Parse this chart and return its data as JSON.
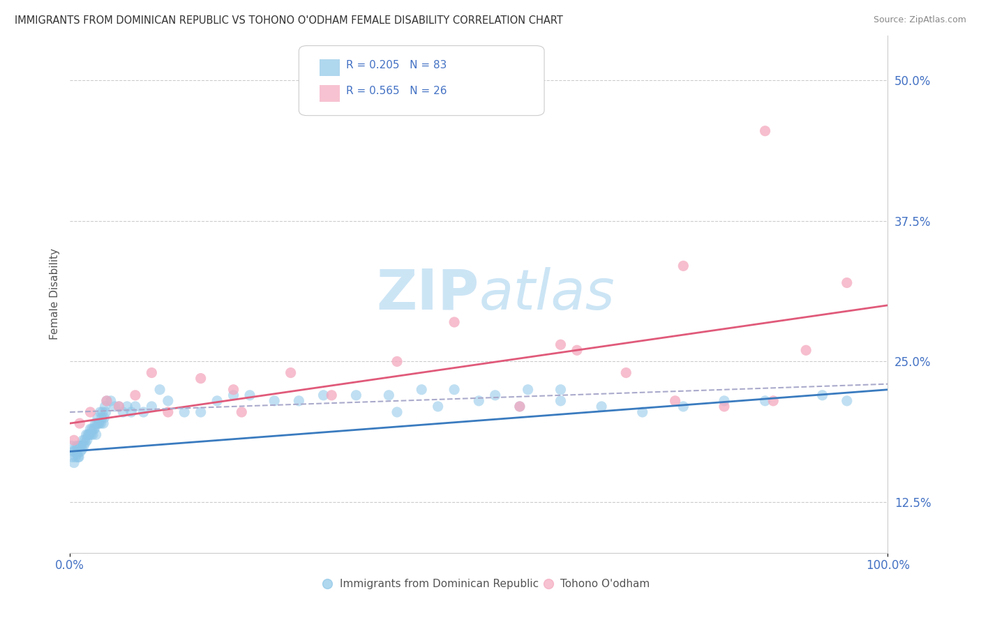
{
  "title": "IMMIGRANTS FROM DOMINICAN REPUBLIC VS TOHONO O'ODHAM FEMALE DISABILITY CORRELATION CHART",
  "source": "Source: ZipAtlas.com",
  "ylabel": "Female Disability",
  "legend_r1": "R = 0.205",
  "legend_n1": "N = 83",
  "legend_r2": "R = 0.565",
  "legend_n2": "N = 26",
  "blue_color": "#8dc6e8",
  "pink_color": "#f4a8be",
  "blue_line_color": "#3a7bbf",
  "pink_line_color": "#e05a7a",
  "dashed_line_color": "#aaaacc",
  "watermark_color": "#cce5f5",
  "blue_scatter_x": [
    0.2,
    0.3,
    0.4,
    0.5,
    0.6,
    0.7,
    0.8,
    0.9,
    1.0,
    1.0,
    1.1,
    1.2,
    1.3,
    1.4,
    1.5,
    1.6,
    1.7,
    1.8,
    1.9,
    2.0,
    2.1,
    2.2,
    2.3,
    2.4,
    2.5,
    2.6,
    2.7,
    2.8,
    2.9,
    3.0,
    3.1,
    3.2,
    3.3,
    3.4,
    3.5,
    3.6,
    3.7,
    3.8,
    3.9,
    4.0,
    4.1,
    4.2,
    4.3,
    4.4,
    4.5,
    5.0,
    5.5,
    6.0,
    6.5,
    7.0,
    7.5,
    8.0,
    9.0,
    10.0,
    11.0,
    12.0,
    14.0,
    16.0,
    18.0,
    20.0,
    22.0,
    25.0,
    28.0,
    31.0,
    35.0,
    39.0,
    43.0,
    47.0,
    52.0,
    56.0,
    60.0,
    40.0,
    45.0,
    50.0,
    55.0,
    60.0,
    65.0,
    70.0,
    75.0,
    80.0,
    85.0,
    92.0,
    95.0
  ],
  "blue_scatter_y": [
    17.5,
    16.5,
    17.0,
    16.0,
    17.0,
    16.5,
    17.5,
    16.8,
    16.5,
    17.5,
    16.5,
    17.5,
    17.0,
    17.5,
    17.2,
    18.0,
    17.5,
    18.0,
    17.8,
    18.5,
    18.0,
    18.5,
    18.5,
    18.5,
    19.0,
    18.5,
    19.0,
    18.5,
    19.0,
    19.0,
    19.5,
    18.5,
    19.5,
    20.0,
    19.5,
    19.5,
    20.5,
    19.5,
    20.0,
    20.5,
    19.5,
    20.0,
    21.0,
    20.5,
    21.5,
    21.5,
    21.0,
    21.0,
    20.5,
    21.0,
    20.5,
    21.0,
    20.5,
    21.0,
    22.5,
    21.5,
    20.5,
    20.5,
    21.5,
    22.0,
    22.0,
    21.5,
    21.5,
    22.0,
    22.0,
    22.0,
    22.5,
    22.5,
    22.0,
    22.5,
    22.5,
    20.5,
    21.0,
    21.5,
    21.0,
    21.5,
    21.0,
    20.5,
    21.0,
    21.5,
    21.5,
    22.0,
    21.5
  ],
  "pink_scatter_x": [
    0.5,
    1.2,
    2.5,
    4.5,
    6.0,
    8.0,
    12.0,
    16.0,
    21.0,
    27.0,
    32.0,
    40.0,
    47.0,
    55.0,
    62.0,
    68.0,
    74.0,
    80.0,
    86.0,
    90.0,
    95.0,
    10.0,
    20.0,
    60.0,
    75.0,
    85.0
  ],
  "pink_scatter_y": [
    18.0,
    19.5,
    20.5,
    21.5,
    21.0,
    22.0,
    20.5,
    23.5,
    20.5,
    24.0,
    22.0,
    25.0,
    28.5,
    21.0,
    26.0,
    24.0,
    21.5,
    21.0,
    21.5,
    26.0,
    32.0,
    24.0,
    22.5,
    26.5,
    33.5,
    45.5
  ],
  "blue_trend_x": [
    0.0,
    100.0
  ],
  "blue_trend_y": [
    17.0,
    22.5
  ],
  "pink_trend_x": [
    0.0,
    100.0
  ],
  "pink_trend_y": [
    19.5,
    30.0
  ],
  "dashed_trend_x": [
    0.0,
    100.0
  ],
  "dashed_trend_y": [
    20.5,
    23.0
  ],
  "xmin": 0.0,
  "xmax": 100.0,
  "ymin": 8.0,
  "ymax": 54.0,
  "ytick_positions": [
    12.5,
    25.0,
    37.5,
    50.0
  ],
  "ytick_labels": [
    "12.5%",
    "25.0%",
    "37.5%",
    "50.0%"
  ]
}
